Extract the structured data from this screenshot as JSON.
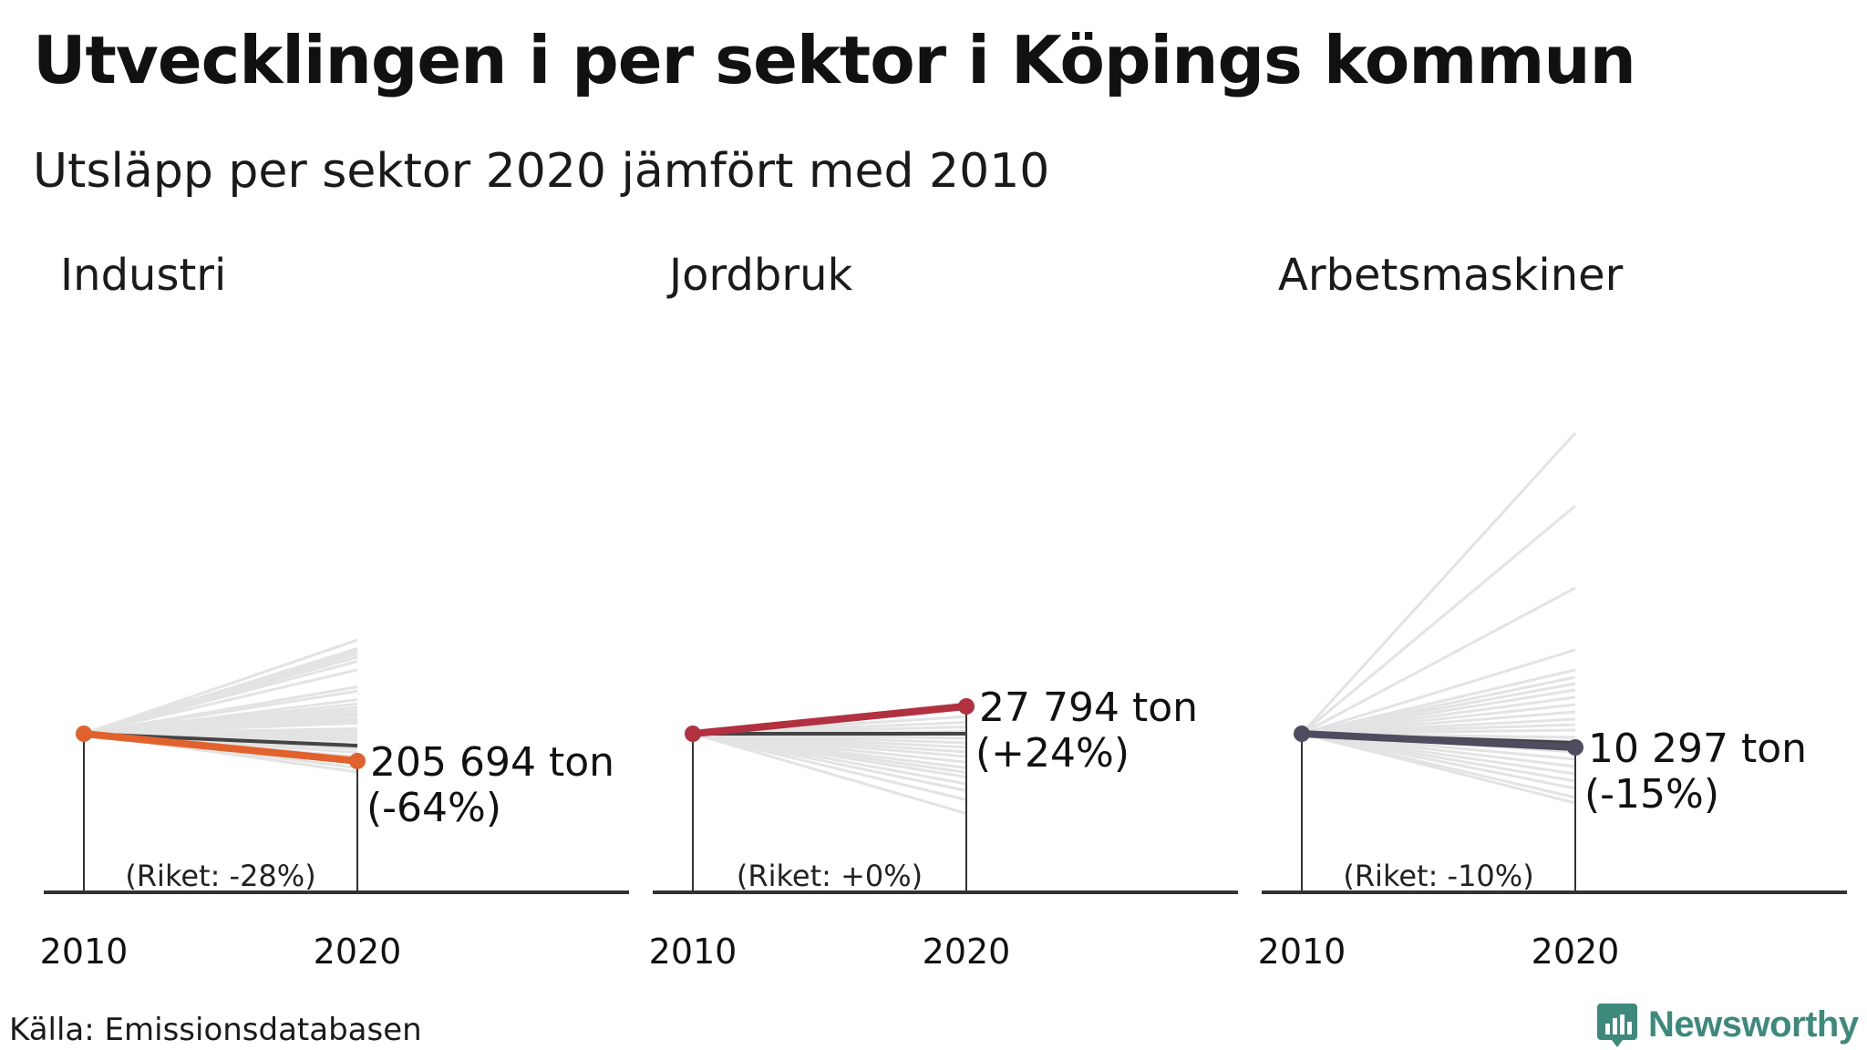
{
  "title": "Utvecklingen i per sektor i Köpings kommun",
  "subtitle": "Utsläpp per sektor 2020 jämfört med 2010",
  "source": "Källa: Emissionsdatabasen",
  "brand": {
    "name": "Newsworthy",
    "icon": "newsworthy-logo-icon",
    "color": "#3d8a7c"
  },
  "chart_data": [
    {
      "type": "line",
      "panel_title": "Industri",
      "x": [
        2010,
        2020
      ],
      "x_tick_labels": [
        "2010",
        "2020"
      ],
      "highlight": {
        "value_2020": "205 694 ton",
        "change_label": "(-64%)",
        "change_pct": -64,
        "color": "#e2622e"
      },
      "national": {
        "label": "(Riket: -28%)",
        "change_pct": -28,
        "color": "#444444"
      },
      "other_municipalities_change_pct": [
        220,
        200,
        195,
        188,
        180,
        170,
        150,
        110,
        100,
        80,
        70,
        62,
        55,
        48,
        42,
        35,
        30,
        25,
        12,
        8,
        2,
        -5,
        -10,
        -16,
        -24,
        -36,
        -44,
        -54,
        -62,
        -70,
        -80,
        -90
      ],
      "y_scale_pct_per_unit": 2.14
    },
    {
      "type": "line",
      "panel_title": "Jordbruk",
      "x": [
        2010,
        2020
      ],
      "x_tick_labels": [
        "2010",
        "2020"
      ],
      "highlight": {
        "value_2020": "27 794 ton",
        "change_label": "(+24%)",
        "change_pct": 24,
        "color": "#b23140"
      },
      "national": {
        "label": "(Riket: +0%)",
        "change_pct": 0,
        "color": "#444444"
      },
      "other_municipalities_change_pct": [
        27,
        15,
        10,
        6,
        2,
        -4,
        -8,
        -12,
        -16,
        -20,
        -25,
        -30,
        -34,
        -38,
        -44,
        -50,
        -58,
        -70
      ],
      "y_scale_pct_per_unit": 0.8
    },
    {
      "type": "line",
      "panel_title": "Arbetsmaskiner",
      "x": [
        2010,
        2020
      ],
      "x_tick_labels": [
        "2010",
        "2020"
      ],
      "highlight": {
        "value_2020": "10 297 ton",
        "change_label": "(-15%)",
        "change_pct": -15,
        "color": "#4e4d5f"
      },
      "national": {
        "label": "(Riket: -10%)",
        "change_pct": -10,
        "color": "#444444"
      },
      "other_municipalities_change_pct": [
        330,
        250,
        160,
        92,
        70,
        62,
        55,
        48,
        40,
        32,
        24,
        16,
        10,
        4,
        -4,
        -8,
        -12,
        -20,
        -28,
        -36,
        -44,
        -52,
        -60,
        -70,
        -76
      ],
      "y_scale_pct_per_unit": 1.0
    }
  ]
}
